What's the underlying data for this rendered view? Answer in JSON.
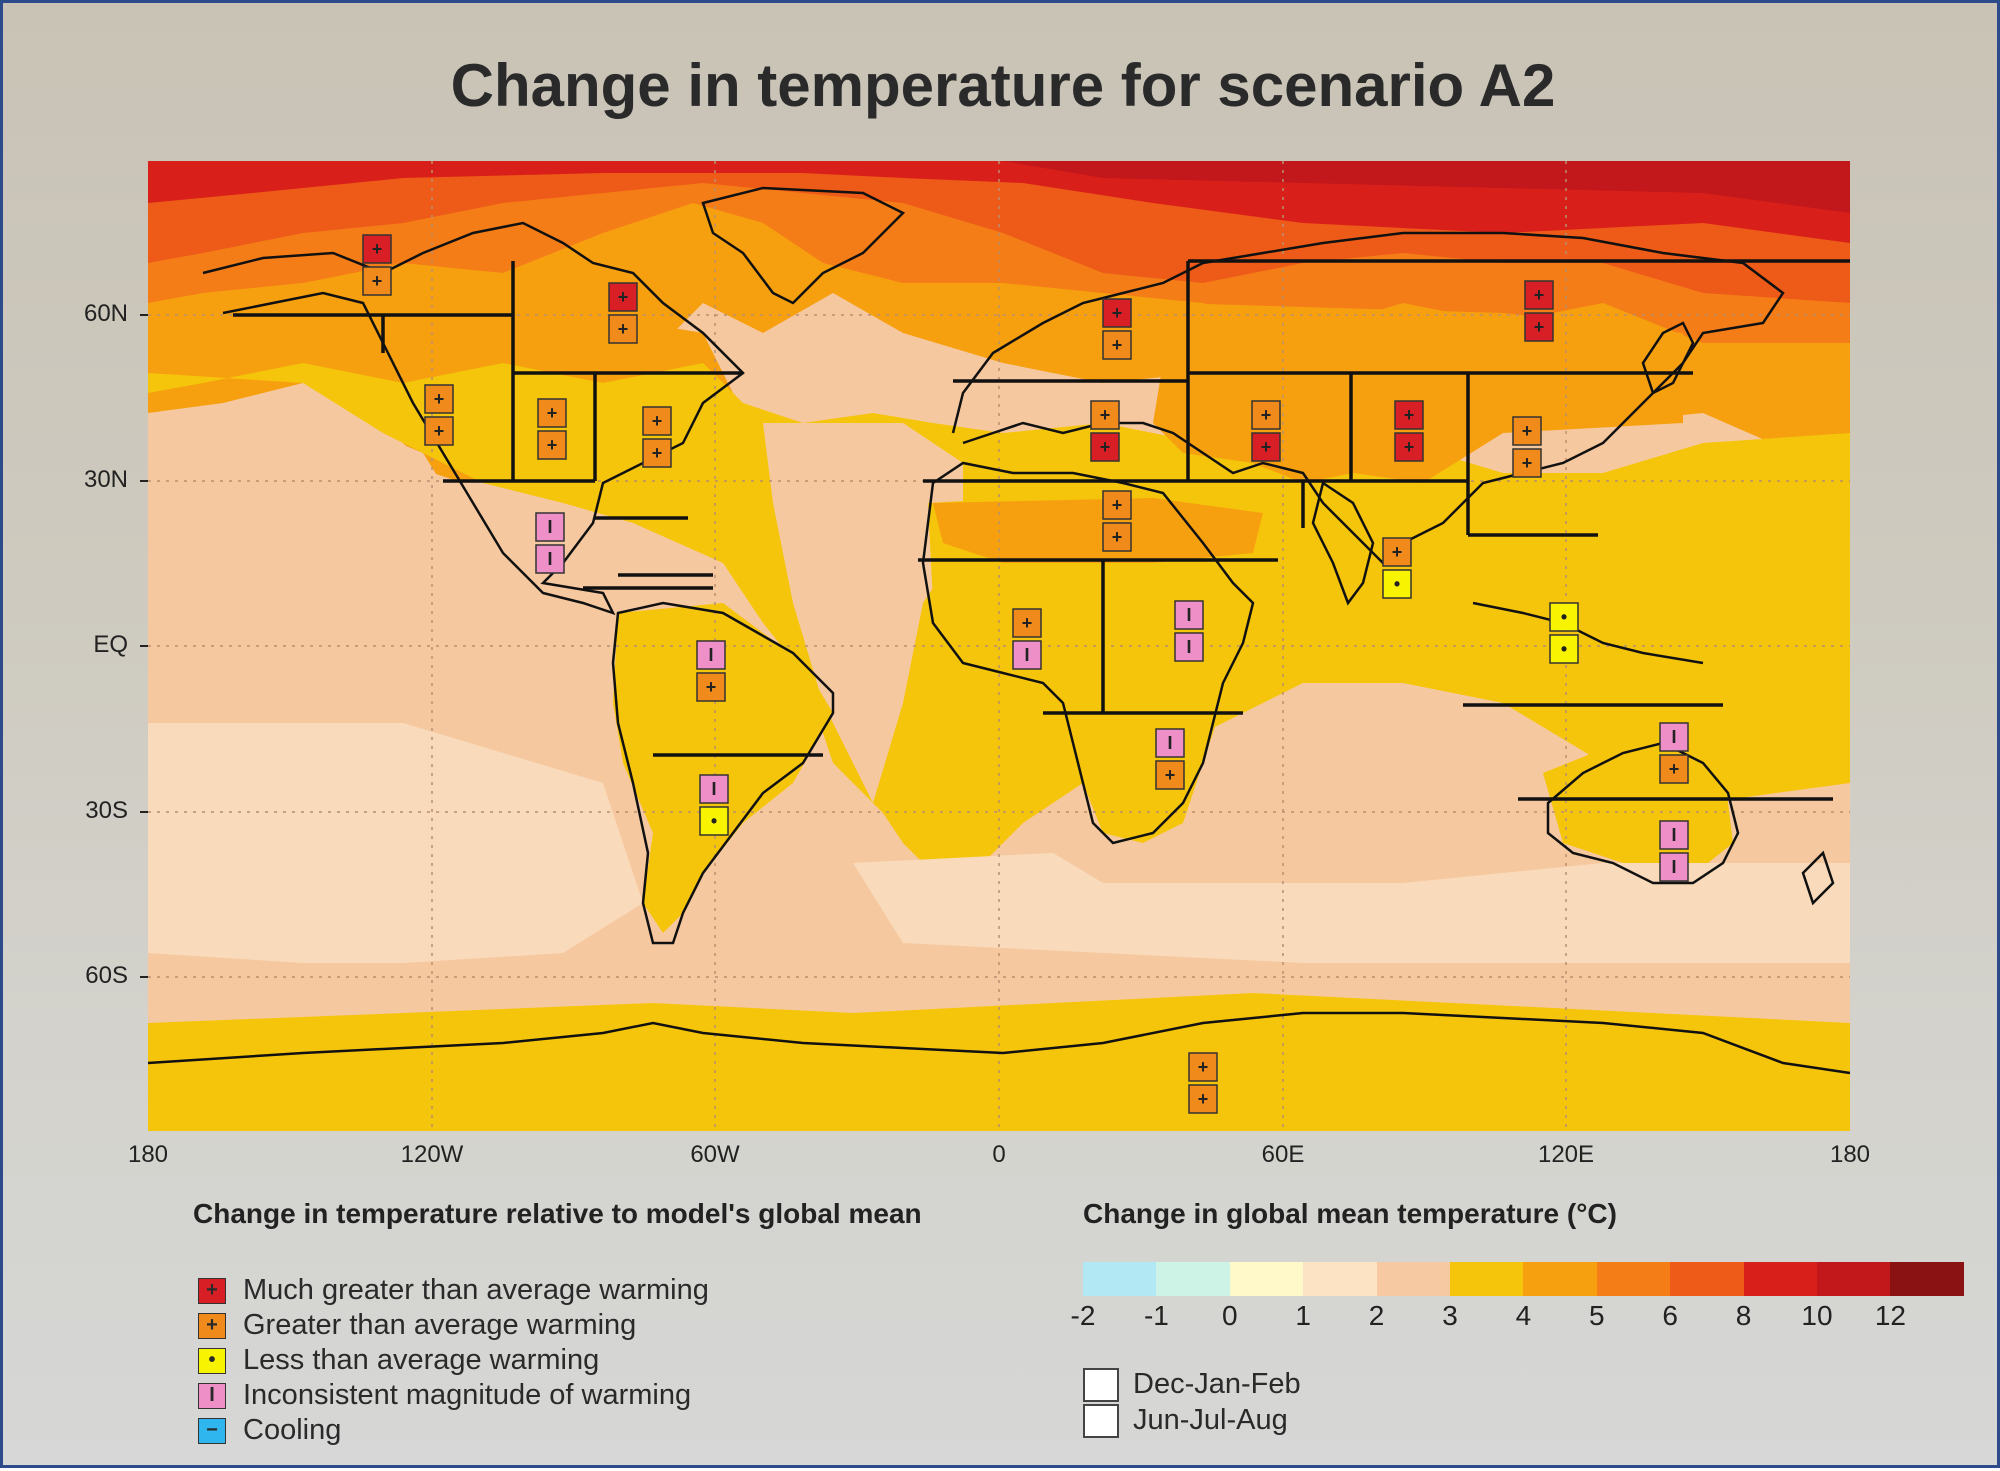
{
  "title": "Change in temperature for scenario A2",
  "map": {
    "lat_labels": [
      "60N",
      "30N",
      "EQ",
      "30S",
      "60S"
    ],
    "lon_labels": [
      "180",
      "120W",
      "60W",
      "0",
      "60E",
      "120E",
      "180"
    ],
    "zone_colors": {
      "band_3_4": "#f5c50b",
      "band_2_3": "#f6c8a0",
      "band_1_2": "#f9dbbb",
      "band_4_5": "#f7a00f",
      "band_5_6": "#f47d18",
      "band_6_8": "#ee5a17",
      "band_8_10": "#d91f1a",
      "band_10_12": "#c2171b"
    }
  },
  "legend_magnitude": {
    "title": "Change in temperature relative to model's global mean",
    "items": [
      {
        "label": "Much greater than average warming",
        "symbol": "+",
        "color": "#d91f26"
      },
      {
        "label": "Greater than average warming",
        "symbol": "+",
        "color": "#f08a1a"
      },
      {
        "label": "Less than average warming",
        "symbol": "•",
        "color": "#f8f300"
      },
      {
        "label": "Inconsistent magnitude of warming",
        "symbol": "I",
        "color": "#ee8fc7"
      },
      {
        "label": "Cooling",
        "symbol": "−",
        "color": "#2fb6ee"
      }
    ]
  },
  "legend_scale": {
    "title": "Change in global mean temperature (°C)",
    "colors": [
      "#b2e7f4",
      "#cdf3e6",
      "#fff8c8",
      "#fbe3c4",
      "#f7c9a2",
      "#f5c50b",
      "#f7a00f",
      "#f47d18",
      "#ee5a17",
      "#d91f1a",
      "#c2171b",
      "#8b1212"
    ],
    "ticks": [
      "-2",
      "-1",
      "0",
      "1",
      "2",
      "3",
      "4",
      "5",
      "6",
      "8",
      "10",
      "12"
    ],
    "seasons": [
      "Dec-Jan-Feb",
      "Jun-Jul-Aug"
    ]
  }
}
